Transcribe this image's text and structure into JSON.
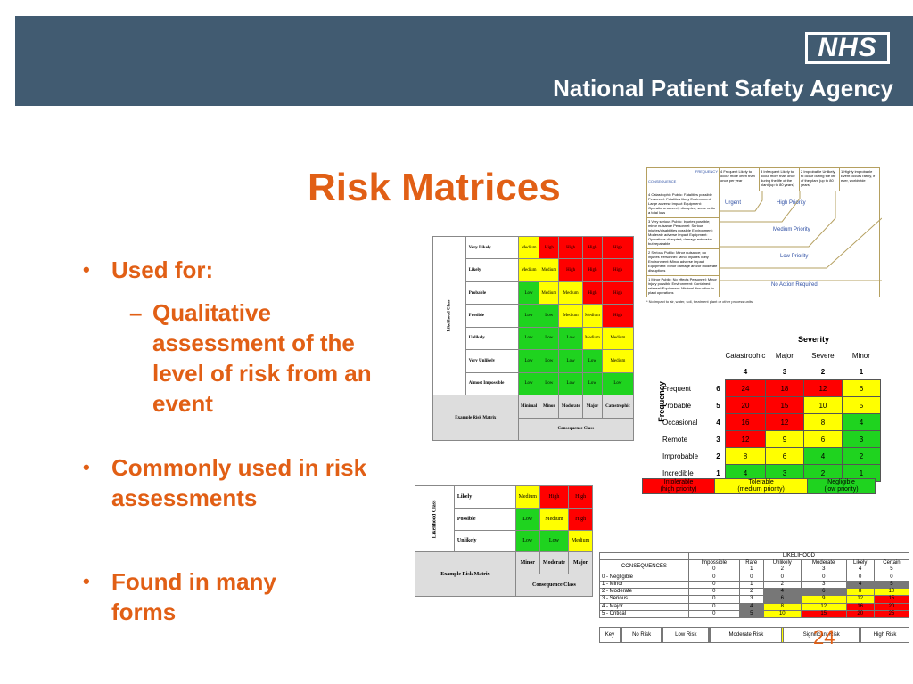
{
  "header": {
    "logo": "NHS",
    "agency": "National Patient Safety Agency"
  },
  "title": "Risk Matrices",
  "bullets": [
    {
      "text": "Used for:"
    },
    {
      "sub": "Qualitative assessment of the level of risk from an event"
    },
    {
      "text": "Commonly used in risk assessments"
    },
    {
      "text": "Found in many forms"
    }
  ],
  "page_number": "24",
  "matrix1": {
    "vlabel": "Likelihood Class",
    "rows": [
      {
        "label": "Very Likely",
        "cells": [
          [
            "Medium",
            "y"
          ],
          [
            "High",
            "r"
          ],
          [
            "High",
            "r"
          ],
          [
            "High",
            "r"
          ],
          [
            "High",
            "r"
          ]
        ]
      },
      {
        "label": "Likely",
        "cells": [
          [
            "Medium",
            "y"
          ],
          [
            "Medium",
            "y"
          ],
          [
            "High",
            "r"
          ],
          [
            "High",
            "r"
          ],
          [
            "High",
            "r"
          ]
        ]
      },
      {
        "label": "Probable",
        "cells": [
          [
            "Low",
            "g"
          ],
          [
            "Medium",
            "y"
          ],
          [
            "Medium",
            "y"
          ],
          [
            "High",
            "r"
          ],
          [
            "High",
            "r"
          ]
        ]
      },
      {
        "label": "Possible",
        "cells": [
          [
            "Low",
            "g"
          ],
          [
            "Low",
            "g"
          ],
          [
            "Medium",
            "y"
          ],
          [
            "Medium",
            "y"
          ],
          [
            "High",
            "r"
          ]
        ]
      },
      {
        "label": "Unlikely",
        "cells": [
          [
            "Low",
            "g"
          ],
          [
            "Low",
            "g"
          ],
          [
            "Low",
            "g"
          ],
          [
            "Medium",
            "y"
          ],
          [
            "Medium",
            "y"
          ]
        ]
      },
      {
        "label": "Very Unlikely",
        "cells": [
          [
            "Low",
            "g"
          ],
          [
            "Low",
            "g"
          ],
          [
            "Low",
            "g"
          ],
          [
            "Low",
            "g"
          ],
          [
            "Medium",
            "y"
          ]
        ]
      },
      {
        "label": "Almost Impossible",
        "cells": [
          [
            "Low",
            "g"
          ],
          [
            "Low",
            "g"
          ],
          [
            "Low",
            "g"
          ],
          [
            "Low",
            "g"
          ],
          [
            "Low",
            "g"
          ]
        ]
      }
    ],
    "corner": "Example Risk Matrix",
    "cols": [
      "Minimal",
      "Minor",
      "Moderate",
      "Major",
      "Catastrophic"
    ],
    "consequence": "Consequence Class"
  },
  "matrix2": {
    "vlabel": "Likelihood Class",
    "rows": [
      {
        "label": "Likely",
        "cells": [
          [
            "Medium",
            "y"
          ],
          [
            "High",
            "r"
          ],
          [
            "High",
            "r"
          ]
        ]
      },
      {
        "label": "Possible",
        "cells": [
          [
            "Low",
            "g"
          ],
          [
            "Medium",
            "y"
          ],
          [
            "High",
            "r"
          ]
        ]
      },
      {
        "label": "Unlikely",
        "cells": [
          [
            "Low",
            "g"
          ],
          [
            "Low",
            "g"
          ],
          [
            "Medium",
            "y"
          ]
        ]
      }
    ],
    "corner": "Example Risk Matrix",
    "cols": [
      "Minor",
      "Moderate",
      "Major"
    ],
    "consequence": "Consequence Class"
  },
  "priority_chart": {
    "frequency": "FREQUENCY",
    "consequence": "CONSEQUENCE",
    "col_heads": [
      "4 Frequent Likely to occur more often than once per year",
      "3 Infrequent Likely to occur more than once during the life of the plant (up to 80 years)",
      "2 Improbable Unlikely to occur during the life of the plant (up to 80 years)",
      "1 Highly improbable Event occurs rarely, if ever, worldwide"
    ],
    "row_heads": [
      "4 Catastrophic Public: Fatalities possible Personnel: Fatalities likely Environment: Large adverse impact Equipment: Operations severely disrupted; some units a total loss",
      "3 Very serious Public: Injuries possible; minor nuisance Personnel: Serious injuries/disabilities possible Environment: Moderate adverse impact Equipment: Operations disrupted; damage extensive but repairable",
      "2 Serious Public: Minor nuisance; no injuries Personnel: Minor injuries likely Environment: Minor adverse impact Equipment: Minor damage and/or moderate disruptions",
      "1 Minor Public: No effects Personnel: Minor injury possible Environment: Contained release* Equipment: Minimal disruption to plant operations"
    ],
    "zones": [
      "Urgent",
      "High Priority",
      "Medium Priority",
      "Low Priority",
      "No Action Required"
    ],
    "note": "* No impact to air, water, soil, treatment plant or other process units."
  },
  "severity_grid": {
    "title": "Severity",
    "freq_label": "Frequency",
    "cols": [
      [
        "Catastrophic",
        "4"
      ],
      [
        "Major",
        "3"
      ],
      [
        "Severe",
        "2"
      ],
      [
        "Minor",
        "1"
      ]
    ],
    "rows": [
      {
        "label": "Frequent",
        "n": "6",
        "cells": [
          [
            "24",
            "r"
          ],
          [
            "18",
            "r"
          ],
          [
            "12",
            "r"
          ],
          [
            "6",
            "y"
          ]
        ]
      },
      {
        "label": "Probable",
        "n": "5",
        "cells": [
          [
            "20",
            "r"
          ],
          [
            "15",
            "r"
          ],
          [
            "10",
            "y"
          ],
          [
            "5",
            "y"
          ]
        ]
      },
      {
        "label": "Occasional",
        "n": "4",
        "cells": [
          [
            "16",
            "r"
          ],
          [
            "12",
            "r"
          ],
          [
            "8",
            "y"
          ],
          [
            "4",
            "g"
          ]
        ]
      },
      {
        "label": "Remote",
        "n": "3",
        "cells": [
          [
            "12",
            "r"
          ],
          [
            "9",
            "y"
          ],
          [
            "6",
            "y"
          ],
          [
            "3",
            "g"
          ]
        ]
      },
      {
        "label": "Improbable",
        "n": "2",
        "cells": [
          [
            "8",
            "y"
          ],
          [
            "6",
            "y"
          ],
          [
            "4",
            "g"
          ],
          [
            "2",
            "g"
          ]
        ]
      },
      {
        "label": "Incredible",
        "n": "1",
        "cells": [
          [
            "4",
            "g"
          ],
          [
            "3",
            "g"
          ],
          [
            "2",
            "g"
          ],
          [
            "1",
            "g"
          ]
        ]
      }
    ],
    "key": [
      [
        "Intolerable",
        "(high priority)",
        "r"
      ],
      [
        "Tolerable",
        "(medium priority)",
        "y"
      ],
      [
        "Negligible",
        "(low priority)",
        "g"
      ]
    ]
  },
  "likelihood_matrix": {
    "top": "LIKELIHOOD",
    "corner": "CONSEQUENCES",
    "cols": [
      [
        "Impossible",
        "0"
      ],
      [
        "Rare",
        "1"
      ],
      [
        "Unlikely",
        "2"
      ],
      [
        "Moderate",
        "3"
      ],
      [
        "Likely",
        "4"
      ],
      [
        "Certain",
        "5"
      ]
    ],
    "rows": [
      {
        "label": "0 - Negligible",
        "cells": [
          [
            "0",
            "g0"
          ],
          [
            "0",
            "g0"
          ],
          [
            "0",
            "g0"
          ],
          [
            "0",
            "g0"
          ],
          [
            "0",
            "g0"
          ],
          [
            "0",
            "g0"
          ]
        ]
      },
      {
        "label": "1 - Minor",
        "cells": [
          [
            "0",
            "g0"
          ],
          [
            "1",
            "g0"
          ],
          [
            "2",
            "g0"
          ],
          [
            "3",
            "g0"
          ],
          [
            "4",
            "g2"
          ],
          [
            "5",
            "g2"
          ]
        ]
      },
      {
        "label": "2 - Moderate",
        "cells": [
          [
            "0",
            "g0"
          ],
          [
            "2",
            "g0"
          ],
          [
            "4",
            "g2"
          ],
          [
            "6",
            "g2"
          ],
          [
            "8",
            "gy"
          ],
          [
            "10",
            "gy"
          ]
        ]
      },
      {
        "label": "3 - Serious",
        "cells": [
          [
            "0",
            "g0"
          ],
          [
            "3",
            "g0"
          ],
          [
            "6",
            "g2"
          ],
          [
            "9",
            "gy"
          ],
          [
            "12",
            "gy"
          ],
          [
            "15",
            "gr"
          ]
        ]
      },
      {
        "label": "4 - Major",
        "cells": [
          [
            "0",
            "g0"
          ],
          [
            "4",
            "g2"
          ],
          [
            "8",
            "gy"
          ],
          [
            "12",
            "gy"
          ],
          [
            "16",
            "gr"
          ],
          [
            "20",
            "gr"
          ]
        ]
      },
      {
        "label": "5 - Critical",
        "cells": [
          [
            "0",
            "g0"
          ],
          [
            "5",
            "g2"
          ],
          [
            "10",
            "gy"
          ],
          [
            "15",
            "gr"
          ],
          [
            "20",
            "gr"
          ],
          [
            "25",
            "gr"
          ]
        ]
      }
    ],
    "key_label": "Key",
    "key": [
      [
        "No Risk",
        "g1"
      ],
      [
        "Low Risk",
        "g0"
      ],
      [
        "Moderate Risk",
        "g2"
      ],
      [
        "Significant Risk",
        "gy"
      ],
      [
        "High Risk",
        "gr"
      ]
    ]
  }
}
